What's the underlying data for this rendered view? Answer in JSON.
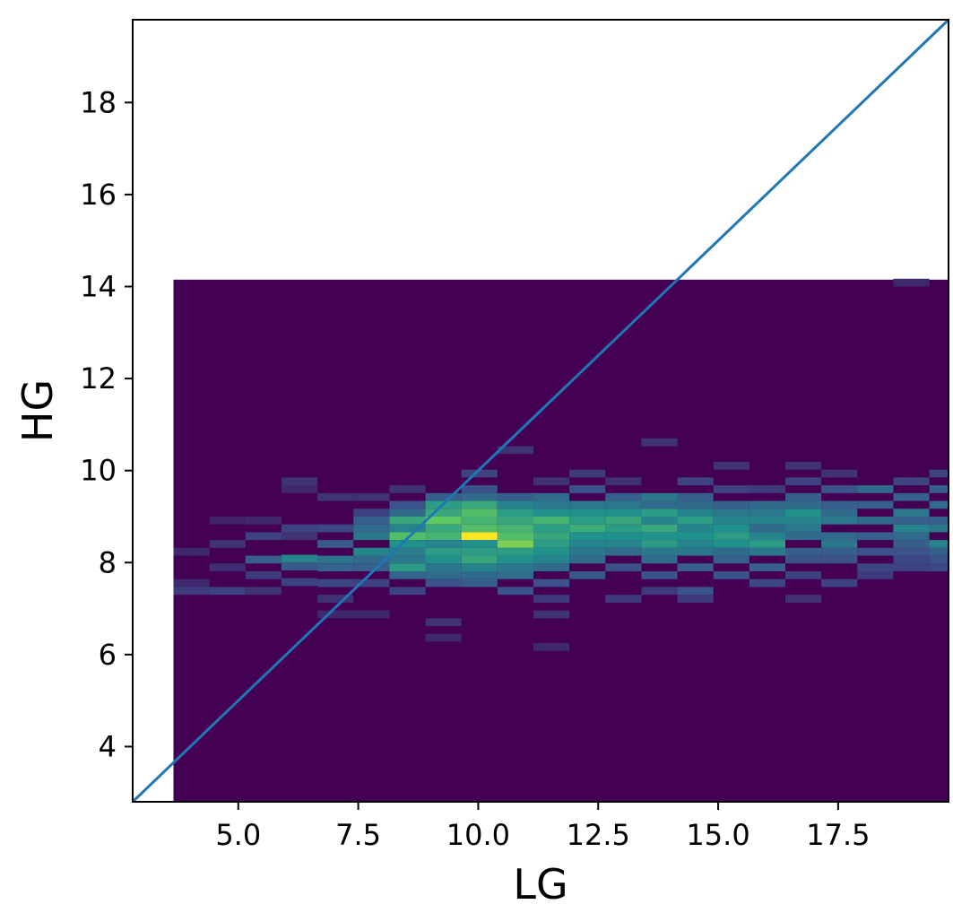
{
  "chart_data": {
    "type": "heatmap",
    "title": "",
    "xlabel": "LG",
    "ylabel": "HG",
    "xlim": [
      2.8,
      19.8
    ],
    "ylim": [
      2.8,
      19.8
    ],
    "x_ticks": [
      "5.0",
      "7.5",
      "10.0",
      "12.5",
      "15.0",
      "17.5"
    ],
    "x_tick_values": [
      5.0,
      7.5,
      10.0,
      12.5,
      15.0,
      17.5
    ],
    "y_ticks": [
      "4",
      "6",
      "8",
      "10",
      "12",
      "14",
      "16",
      "18"
    ],
    "y_tick_values": [
      4,
      6,
      8,
      10,
      12,
      14,
      16,
      18
    ],
    "grid": false,
    "colormap": "viridis",
    "background_color": "#440154",
    "histogram_extent": {
      "x": [
        3.65,
        19.8
      ],
      "y": [
        2.8,
        14.15
      ]
    },
    "x_bin_edges": [
      3.65,
      4.4,
      5.15,
      5.9,
      6.65,
      7.4,
      8.15,
      8.9,
      9.65,
      10.4,
      11.15,
      11.9,
      12.65,
      13.4,
      14.15,
      14.9,
      15.65,
      16.4,
      17.15,
      17.9,
      18.65,
      19.4,
      19.8
    ],
    "y_bin_height": 0.17,
    "max_count": 1.0,
    "cells": [
      {
        "x": 3.65,
        "y": 8.15,
        "v": 0.12
      },
      {
        "x": 3.65,
        "y": 7.3,
        "v": 0.18
      },
      {
        "x": 3.65,
        "y": 7.47,
        "v": 0.12
      },
      {
        "x": 4.4,
        "y": 8.32,
        "v": 0.15
      },
      {
        "x": 4.4,
        "y": 7.3,
        "v": 0.2
      },
      {
        "x": 4.4,
        "y": 7.81,
        "v": 0.14
      },
      {
        "x": 4.4,
        "y": 8.83,
        "v": 0.1
      },
      {
        "x": 5.15,
        "y": 8.49,
        "v": 0.2
      },
      {
        "x": 5.15,
        "y": 7.98,
        "v": 0.3
      },
      {
        "x": 5.15,
        "y": 7.64,
        "v": 0.18
      },
      {
        "x": 5.15,
        "y": 8.83,
        "v": 0.12
      },
      {
        "x": 5.15,
        "y": 7.3,
        "v": 0.15
      },
      {
        "x": 5.9,
        "y": 8.66,
        "v": 0.2
      },
      {
        "x": 5.9,
        "y": 8.49,
        "v": 0.15
      },
      {
        "x": 5.9,
        "y": 8.0,
        "v": 0.45
      },
      {
        "x": 5.9,
        "y": 7.83,
        "v": 0.28
      },
      {
        "x": 5.9,
        "y": 7.49,
        "v": 0.2
      },
      {
        "x": 5.9,
        "y": 9.51,
        "v": 0.12
      },
      {
        "x": 5.9,
        "y": 9.68,
        "v": 0.15
      },
      {
        "x": 6.65,
        "y": 8.66,
        "v": 0.22
      },
      {
        "x": 6.65,
        "y": 8.32,
        "v": 0.28
      },
      {
        "x": 6.65,
        "y": 7.98,
        "v": 0.38
      },
      {
        "x": 6.65,
        "y": 7.81,
        "v": 0.32
      },
      {
        "x": 6.65,
        "y": 7.47,
        "v": 0.22
      },
      {
        "x": 6.65,
        "y": 7.13,
        "v": 0.15
      },
      {
        "x": 6.65,
        "y": 6.79,
        "v": 0.12
      },
      {
        "x": 6.65,
        "y": 9.34,
        "v": 0.15
      },
      {
        "x": 7.4,
        "y": 8.83,
        "v": 0.3
      },
      {
        "x": 7.4,
        "y": 8.66,
        "v": 0.35
      },
      {
        "x": 7.4,
        "y": 8.49,
        "v": 0.4
      },
      {
        "x": 7.4,
        "y": 8.15,
        "v": 0.45
      },
      {
        "x": 7.4,
        "y": 7.98,
        "v": 0.35
      },
      {
        "x": 7.4,
        "y": 7.81,
        "v": 0.3
      },
      {
        "x": 7.4,
        "y": 7.47,
        "v": 0.2
      },
      {
        "x": 7.4,
        "y": 9.0,
        "v": 0.2
      },
      {
        "x": 7.4,
        "y": 9.34,
        "v": 0.15
      },
      {
        "x": 7.4,
        "y": 6.79,
        "v": 0.12
      },
      {
        "x": 8.15,
        "y": 9.0,
        "v": 0.35
      },
      {
        "x": 8.15,
        "y": 8.83,
        "v": 0.6
      },
      {
        "x": 8.15,
        "y": 8.66,
        "v": 0.45
      },
      {
        "x": 8.15,
        "y": 8.49,
        "v": 0.7
      },
      {
        "x": 8.15,
        "y": 8.32,
        "v": 0.5
      },
      {
        "x": 8.15,
        "y": 8.15,
        "v": 0.42
      },
      {
        "x": 8.15,
        "y": 7.98,
        "v": 0.4
      },
      {
        "x": 8.15,
        "y": 7.81,
        "v": 0.55
      },
      {
        "x": 8.15,
        "y": 7.64,
        "v": 0.32
      },
      {
        "x": 8.15,
        "y": 7.3,
        "v": 0.2
      },
      {
        "x": 8.15,
        "y": 9.17,
        "v": 0.25
      },
      {
        "x": 8.15,
        "y": 9.51,
        "v": 0.15
      },
      {
        "x": 8.9,
        "y": 9.17,
        "v": 0.55
      },
      {
        "x": 8.9,
        "y": 9.0,
        "v": 0.6
      },
      {
        "x": 8.9,
        "y": 8.83,
        "v": 0.75
      },
      {
        "x": 8.9,
        "y": 8.66,
        "v": 0.6
      },
      {
        "x": 8.9,
        "y": 8.49,
        "v": 0.65
      },
      {
        "x": 8.9,
        "y": 8.32,
        "v": 0.45
      },
      {
        "x": 8.9,
        "y": 8.15,
        "v": 0.55
      },
      {
        "x": 8.9,
        "y": 7.98,
        "v": 0.5
      },
      {
        "x": 8.9,
        "y": 7.81,
        "v": 0.4
      },
      {
        "x": 8.9,
        "y": 7.64,
        "v": 0.35
      },
      {
        "x": 8.9,
        "y": 7.47,
        "v": 0.25
      },
      {
        "x": 8.9,
        "y": 9.34,
        "v": 0.3
      },
      {
        "x": 8.9,
        "y": 6.62,
        "v": 0.15
      },
      {
        "x": 8.9,
        "y": 6.28,
        "v": 0.12
      },
      {
        "x": 9.65,
        "y": 9.17,
        "v": 0.6
      },
      {
        "x": 9.65,
        "y": 9.0,
        "v": 0.7
      },
      {
        "x": 9.65,
        "y": 8.83,
        "v": 0.65
      },
      {
        "x": 9.65,
        "y": 8.66,
        "v": 0.7
      },
      {
        "x": 9.65,
        "y": 8.49,
        "v": 1.0
      },
      {
        "x": 9.65,
        "y": 8.32,
        "v": 0.5
      },
      {
        "x": 9.65,
        "y": 8.15,
        "v": 0.55
      },
      {
        "x": 9.65,
        "y": 7.98,
        "v": 0.6
      },
      {
        "x": 9.65,
        "y": 7.81,
        "v": 0.45
      },
      {
        "x": 9.65,
        "y": 7.64,
        "v": 0.35
      },
      {
        "x": 9.65,
        "y": 7.47,
        "v": 0.3
      },
      {
        "x": 9.65,
        "y": 9.34,
        "v": 0.35
      },
      {
        "x": 9.65,
        "y": 9.51,
        "v": 0.25
      },
      {
        "x": 9.65,
        "y": 9.85,
        "v": 0.2
      },
      {
        "x": 10.4,
        "y": 9.34,
        "v": 0.3
      },
      {
        "x": 10.4,
        "y": 9.17,
        "v": 0.45
      },
      {
        "x": 10.4,
        "y": 9.0,
        "v": 0.55
      },
      {
        "x": 10.4,
        "y": 8.83,
        "v": 0.6
      },
      {
        "x": 10.4,
        "y": 8.66,
        "v": 0.65
      },
      {
        "x": 10.4,
        "y": 8.49,
        "v": 0.7
      },
      {
        "x": 10.4,
        "y": 8.32,
        "v": 0.8
      },
      {
        "x": 10.4,
        "y": 8.15,
        "v": 0.55
      },
      {
        "x": 10.4,
        "y": 7.98,
        "v": 0.5
      },
      {
        "x": 10.4,
        "y": 7.81,
        "v": 0.4
      },
      {
        "x": 10.4,
        "y": 7.64,
        "v": 0.35
      },
      {
        "x": 10.4,
        "y": 7.3,
        "v": 0.25
      },
      {
        "x": 10.4,
        "y": 10.36,
        "v": 0.15
      },
      {
        "x": 11.15,
        "y": 9.34,
        "v": 0.35
      },
      {
        "x": 11.15,
        "y": 9.17,
        "v": 0.4
      },
      {
        "x": 11.15,
        "y": 9.0,
        "v": 0.5
      },
      {
        "x": 11.15,
        "y": 8.83,
        "v": 0.65
      },
      {
        "x": 11.15,
        "y": 8.66,
        "v": 0.55
      },
      {
        "x": 11.15,
        "y": 8.49,
        "v": 0.6
      },
      {
        "x": 11.15,
        "y": 8.32,
        "v": 0.55
      },
      {
        "x": 11.15,
        "y": 8.15,
        "v": 0.5
      },
      {
        "x": 11.15,
        "y": 7.98,
        "v": 0.45
      },
      {
        "x": 11.15,
        "y": 7.81,
        "v": 0.35
      },
      {
        "x": 11.15,
        "y": 7.47,
        "v": 0.25
      },
      {
        "x": 11.15,
        "y": 7.13,
        "v": 0.18
      },
      {
        "x": 11.15,
        "y": 6.79,
        "v": 0.15
      },
      {
        "x": 11.15,
        "y": 6.08,
        "v": 0.12
      },
      {
        "x": 11.15,
        "y": 9.68,
        "v": 0.15
      },
      {
        "x": 11.9,
        "y": 9.51,
        "v": 0.25
      },
      {
        "x": 11.9,
        "y": 9.17,
        "v": 0.4
      },
      {
        "x": 11.9,
        "y": 9.0,
        "v": 0.5
      },
      {
        "x": 11.9,
        "y": 8.83,
        "v": 0.55
      },
      {
        "x": 11.9,
        "y": 8.66,
        "v": 0.62
      },
      {
        "x": 11.9,
        "y": 8.49,
        "v": 0.5
      },
      {
        "x": 11.9,
        "y": 8.32,
        "v": 0.45
      },
      {
        "x": 11.9,
        "y": 8.15,
        "v": 0.4
      },
      {
        "x": 11.9,
        "y": 7.98,
        "v": 0.35
      },
      {
        "x": 11.9,
        "y": 7.64,
        "v": 0.28
      },
      {
        "x": 11.9,
        "y": 9.85,
        "v": 0.18
      },
      {
        "x": 12.65,
        "y": 9.34,
        "v": 0.3
      },
      {
        "x": 12.65,
        "y": 9.17,
        "v": 0.4
      },
      {
        "x": 12.65,
        "y": 9.0,
        "v": 0.5
      },
      {
        "x": 12.65,
        "y": 8.83,
        "v": 0.6
      },
      {
        "x": 12.65,
        "y": 8.66,
        "v": 0.55
      },
      {
        "x": 12.65,
        "y": 8.49,
        "v": 0.5
      },
      {
        "x": 12.65,
        "y": 8.32,
        "v": 0.45
      },
      {
        "x": 12.65,
        "y": 8.15,
        "v": 0.35
      },
      {
        "x": 12.65,
        "y": 7.81,
        "v": 0.25
      },
      {
        "x": 12.65,
        "y": 7.13,
        "v": 0.18
      },
      {
        "x": 12.65,
        "y": 9.68,
        "v": 0.15
      },
      {
        "x": 13.4,
        "y": 9.34,
        "v": 0.4
      },
      {
        "x": 13.4,
        "y": 9.17,
        "v": 0.35
      },
      {
        "x": 13.4,
        "y": 9.0,
        "v": 0.55
      },
      {
        "x": 13.4,
        "y": 8.83,
        "v": 0.45
      },
      {
        "x": 13.4,
        "y": 8.66,
        "v": 0.6
      },
      {
        "x": 13.4,
        "y": 8.49,
        "v": 0.5
      },
      {
        "x": 13.4,
        "y": 8.32,
        "v": 0.55
      },
      {
        "x": 13.4,
        "y": 8.15,
        "v": 0.4
      },
      {
        "x": 13.4,
        "y": 7.98,
        "v": 0.35
      },
      {
        "x": 13.4,
        "y": 7.64,
        "v": 0.25
      },
      {
        "x": 13.4,
        "y": 7.3,
        "v": 0.18
      },
      {
        "x": 13.4,
        "y": 10.53,
        "v": 0.15
      },
      {
        "x": 14.15,
        "y": 9.34,
        "v": 0.3
      },
      {
        "x": 14.15,
        "y": 9.17,
        "v": 0.35
      },
      {
        "x": 14.15,
        "y": 9.0,
        "v": 0.45
      },
      {
        "x": 14.15,
        "y": 8.83,
        "v": 0.55
      },
      {
        "x": 14.15,
        "y": 8.66,
        "v": 0.45
      },
      {
        "x": 14.15,
        "y": 8.49,
        "v": 0.5
      },
      {
        "x": 14.15,
        "y": 8.32,
        "v": 0.45
      },
      {
        "x": 14.15,
        "y": 8.15,
        "v": 0.4
      },
      {
        "x": 14.15,
        "y": 7.81,
        "v": 0.3
      },
      {
        "x": 14.15,
        "y": 7.3,
        "v": 0.25
      },
      {
        "x": 14.15,
        "y": 7.13,
        "v": 0.18
      },
      {
        "x": 14.15,
        "y": 9.68,
        "v": 0.2
      },
      {
        "x": 14.9,
        "y": 9.17,
        "v": 0.3
      },
      {
        "x": 14.9,
        "y": 9.0,
        "v": 0.4
      },
      {
        "x": 14.9,
        "y": 8.83,
        "v": 0.45
      },
      {
        "x": 14.9,
        "y": 8.66,
        "v": 0.5
      },
      {
        "x": 14.9,
        "y": 8.49,
        "v": 0.55
      },
      {
        "x": 14.9,
        "y": 8.32,
        "v": 0.5
      },
      {
        "x": 14.9,
        "y": 8.15,
        "v": 0.35
      },
      {
        "x": 14.9,
        "y": 7.98,
        "v": 0.3
      },
      {
        "x": 14.9,
        "y": 7.64,
        "v": 0.25
      },
      {
        "x": 14.9,
        "y": 9.51,
        "v": 0.2
      },
      {
        "x": 14.9,
        "y": 10.02,
        "v": 0.15
      },
      {
        "x": 15.65,
        "y": 9.17,
        "v": 0.35
      },
      {
        "x": 15.65,
        "y": 9.0,
        "v": 0.4
      },
      {
        "x": 15.65,
        "y": 8.83,
        "v": 0.45
      },
      {
        "x": 15.65,
        "y": 8.66,
        "v": 0.35
      },
      {
        "x": 15.65,
        "y": 8.49,
        "v": 0.45
      },
      {
        "x": 15.65,
        "y": 8.32,
        "v": 0.55
      },
      {
        "x": 15.65,
        "y": 8.15,
        "v": 0.4
      },
      {
        "x": 15.65,
        "y": 7.81,
        "v": 0.3
      },
      {
        "x": 15.65,
        "y": 7.47,
        "v": 0.22
      },
      {
        "x": 15.65,
        "y": 9.51,
        "v": 0.18
      },
      {
        "x": 16.4,
        "y": 9.68,
        "v": 0.2
      },
      {
        "x": 16.4,
        "y": 9.34,
        "v": 0.3
      },
      {
        "x": 16.4,
        "y": 9.17,
        "v": 0.35
      },
      {
        "x": 16.4,
        "y": 9.0,
        "v": 0.5
      },
      {
        "x": 16.4,
        "y": 8.83,
        "v": 0.45
      },
      {
        "x": 16.4,
        "y": 8.66,
        "v": 0.4
      },
      {
        "x": 16.4,
        "y": 8.49,
        "v": 0.35
      },
      {
        "x": 16.4,
        "y": 8.15,
        "v": 0.3
      },
      {
        "x": 16.4,
        "y": 7.98,
        "v": 0.25
      },
      {
        "x": 16.4,
        "y": 7.64,
        "v": 0.2
      },
      {
        "x": 16.4,
        "y": 7.13,
        "v": 0.15
      },
      {
        "x": 16.4,
        "y": 10.02,
        "v": 0.15
      },
      {
        "x": 17.15,
        "y": 9.51,
        "v": 0.25
      },
      {
        "x": 17.15,
        "y": 9.17,
        "v": 0.3
      },
      {
        "x": 17.15,
        "y": 9.0,
        "v": 0.35
      },
      {
        "x": 17.15,
        "y": 8.83,
        "v": 0.4
      },
      {
        "x": 17.15,
        "y": 8.49,
        "v": 0.35
      },
      {
        "x": 17.15,
        "y": 8.32,
        "v": 0.4
      },
      {
        "x": 17.15,
        "y": 8.15,
        "v": 0.3
      },
      {
        "x": 17.15,
        "y": 7.98,
        "v": 0.25
      },
      {
        "x": 17.15,
        "y": 7.47,
        "v": 0.2
      },
      {
        "x": 17.15,
        "y": 9.85,
        "v": 0.15
      },
      {
        "x": 17.9,
        "y": 9.51,
        "v": 0.35
      },
      {
        "x": 17.9,
        "y": 9.17,
        "v": 0.3
      },
      {
        "x": 17.9,
        "y": 8.83,
        "v": 0.35
      },
      {
        "x": 17.9,
        "y": 8.49,
        "v": 0.3
      },
      {
        "x": 17.9,
        "y": 8.15,
        "v": 0.25
      },
      {
        "x": 17.9,
        "y": 7.81,
        "v": 0.22
      },
      {
        "x": 17.9,
        "y": 7.64,
        "v": 0.18
      },
      {
        "x": 18.65,
        "y": 9.68,
        "v": 0.2
      },
      {
        "x": 18.65,
        "y": 9.34,
        "v": 0.3
      },
      {
        "x": 18.65,
        "y": 9.0,
        "v": 0.4
      },
      {
        "x": 18.65,
        "y": 8.83,
        "v": 0.3
      },
      {
        "x": 18.65,
        "y": 8.66,
        "v": 0.45
      },
      {
        "x": 18.65,
        "y": 8.49,
        "v": 0.35
      },
      {
        "x": 18.65,
        "y": 8.32,
        "v": 0.3
      },
      {
        "x": 18.65,
        "y": 8.15,
        "v": 0.25
      },
      {
        "x": 18.65,
        "y": 7.98,
        "v": 0.22
      },
      {
        "x": 18.65,
        "y": 7.81,
        "v": 0.2
      },
      {
        "x": 18.65,
        "y": 14.0,
        "v": 0.12
      },
      {
        "x": 19.4,
        "y": 9.85,
        "v": 0.2
      },
      {
        "x": 19.4,
        "y": 9.51,
        "v": 0.3
      },
      {
        "x": 19.4,
        "y": 9.17,
        "v": 0.35
      },
      {
        "x": 19.4,
        "y": 8.83,
        "v": 0.3
      },
      {
        "x": 19.4,
        "y": 8.66,
        "v": 0.4
      },
      {
        "x": 19.4,
        "y": 8.32,
        "v": 0.45
      },
      {
        "x": 19.4,
        "y": 8.15,
        "v": 0.3
      },
      {
        "x": 19.4,
        "y": 7.98,
        "v": 0.25
      },
      {
        "x": 19.4,
        "y": 7.81,
        "v": 0.22
      }
    ],
    "reference_line": {
      "type": "y=x",
      "x": [
        2.8,
        19.8
      ],
      "y": [
        2.8,
        19.8
      ],
      "color": "#1f77b4"
    }
  }
}
